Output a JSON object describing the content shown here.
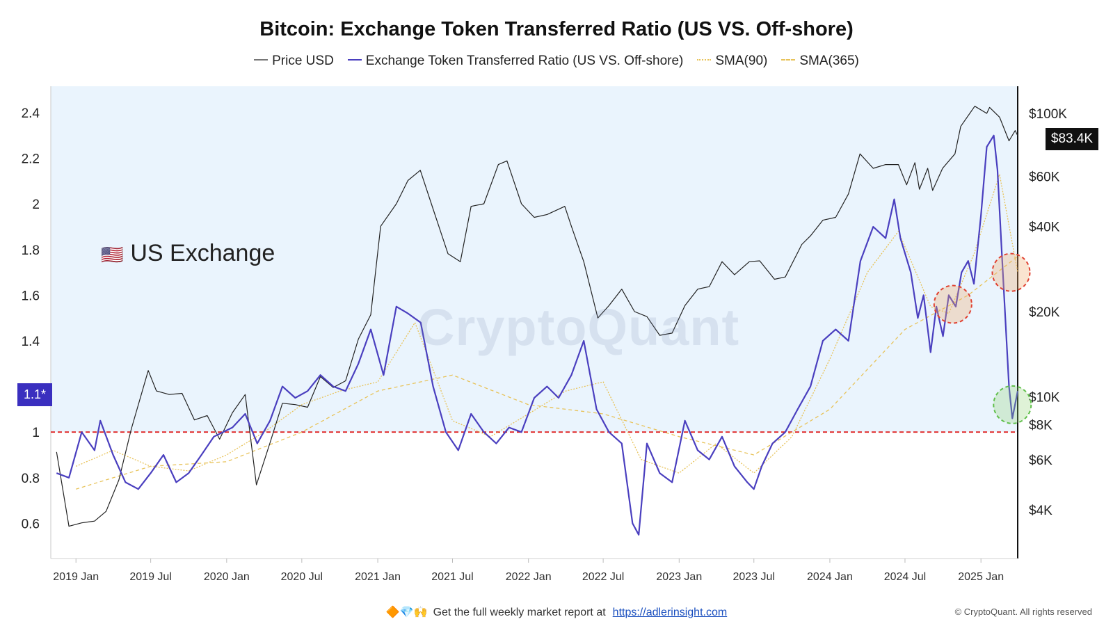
{
  "title": "Bitcoin: Exchange Token Transferred Ratio (US VS. Off-shore)",
  "legend": [
    {
      "label": "Price USD",
      "color": "#777777",
      "style": "solid"
    },
    {
      "label": "Exchange Token Transferred Ratio (US VS. Off-shore)",
      "color": "#4a3fbf",
      "style": "solid"
    },
    {
      "label": "SMA(90)",
      "color": "#e8c35a",
      "style": "dotted"
    },
    {
      "label": "SMA(365)",
      "color": "#e8c35a",
      "style": "dashed"
    }
  ],
  "annotation_label": "US Exchange",
  "annotation_icon": "us-flag-icon",
  "watermark": "CryptoQuant",
  "ratio_badge": "1.1*",
  "price_badge": "$83.4K",
  "footer": {
    "icons": "🔶💎🙌",
    "text": "Get the full weekly market report at",
    "link": "https://adlerinsight.com"
  },
  "copyright": "© CryptoQuant. All rights reserved",
  "colors": {
    "highlight_bg": "#eaf4fd",
    "ratio_line": "#4a3fbf",
    "price_line": "#222222",
    "sma": "#e8c35a",
    "threshold": "#e02020",
    "red_circle": "#e04030",
    "green_circle": "#5fbf4a"
  },
  "chart_data": {
    "type": "line",
    "x_range": [
      "2018-11-01",
      "2025-03-31"
    ],
    "x_ticks": [
      "2019 Jan",
      "2019 Jul",
      "2020 Jan",
      "2020 Jul",
      "2021 Jan",
      "2021 Jul",
      "2022 Jan",
      "2022 Jul",
      "2023 Jan",
      "2023 Jul",
      "2024 Jan",
      "2024 Jul",
      "2025 Jan"
    ],
    "y_left": {
      "ticks": [
        0.6,
        0.8,
        1,
        1.2,
        1.4,
        1.6,
        1.8,
        2,
        2.2,
        2.4
      ],
      "tick_labels": [
        "0.6",
        "0.8",
        "1",
        "1.2",
        "1.4",
        "1.6",
        "1.8",
        "2",
        "2.2",
        "2.4"
      ],
      "range": [
        0.45,
        2.5
      ]
    },
    "y_right": {
      "scale": "log",
      "ticks": [
        4000,
        6000,
        8000,
        10000,
        20000,
        40000,
        60000,
        100000
      ],
      "tick_labels": [
        "$4K",
        "$6K",
        "$8K",
        "$10K",
        "$20K",
        "$40K",
        "$60K",
        "$100K"
      ],
      "range": [
        3000,
        120000
      ]
    },
    "threshold": 1.0,
    "shaded_above": 1.0,
    "series": [
      {
        "name": "Price USD",
        "axis": "right",
        "points": [
          [
            "2018-11-15",
            6400
          ],
          [
            "2018-12-15",
            3500
          ],
          [
            "2019-01-15",
            3600
          ],
          [
            "2019-02-15",
            3650
          ],
          [
            "2019-03-15",
            3950
          ],
          [
            "2019-04-15",
            5100
          ],
          [
            "2019-05-15",
            7700
          ],
          [
            "2019-06-25",
            12400
          ],
          [
            "2019-07-15",
            10500
          ],
          [
            "2019-08-15",
            10200
          ],
          [
            "2019-09-15",
            10300
          ],
          [
            "2019-10-15",
            8300
          ],
          [
            "2019-11-15",
            8600
          ],
          [
            "2019-12-15",
            7100
          ],
          [
            "2020-01-15",
            8800
          ],
          [
            "2020-02-15",
            10200
          ],
          [
            "2020-03-13",
            4900
          ],
          [
            "2020-04-15",
            6900
          ],
          [
            "2020-05-15",
            9500
          ],
          [
            "2020-06-15",
            9400
          ],
          [
            "2020-07-15",
            9200
          ],
          [
            "2020-08-15",
            11800
          ],
          [
            "2020-09-15",
            10800
          ],
          [
            "2020-10-15",
            11400
          ],
          [
            "2020-11-15",
            16000
          ],
          [
            "2020-12-15",
            19500
          ],
          [
            "2021-01-08",
            40000
          ],
          [
            "2021-02-15",
            48000
          ],
          [
            "2021-03-15",
            58000
          ],
          [
            "2021-04-14",
            63000
          ],
          [
            "2021-05-15",
            46000
          ],
          [
            "2021-06-20",
            32000
          ],
          [
            "2021-07-20",
            30000
          ],
          [
            "2021-08-15",
            47000
          ],
          [
            "2021-09-15",
            48000
          ],
          [
            "2021-10-20",
            66000
          ],
          [
            "2021-11-10",
            68000
          ],
          [
            "2021-12-15",
            48000
          ],
          [
            "2022-01-15",
            43000
          ],
          [
            "2022-02-15",
            44000
          ],
          [
            "2022-03-30",
            47000
          ],
          [
            "2022-04-15",
            40000
          ],
          [
            "2022-05-15",
            30000
          ],
          [
            "2022-06-18",
            19000
          ],
          [
            "2022-07-15",
            21000
          ],
          [
            "2022-08-15",
            24000
          ],
          [
            "2022-09-15",
            20000
          ],
          [
            "2022-10-15",
            19200
          ],
          [
            "2022-11-15",
            16500
          ],
          [
            "2022-12-15",
            16800
          ],
          [
            "2023-01-15",
            21000
          ],
          [
            "2023-02-15",
            24000
          ],
          [
            "2023-03-15",
            24500
          ],
          [
            "2023-04-15",
            30000
          ],
          [
            "2023-05-15",
            27000
          ],
          [
            "2023-06-20",
            30000
          ],
          [
            "2023-07-15",
            30200
          ],
          [
            "2023-08-20",
            26000
          ],
          [
            "2023-09-15",
            26500
          ],
          [
            "2023-10-25",
            34500
          ],
          [
            "2023-11-15",
            37000
          ],
          [
            "2023-12-15",
            42000
          ],
          [
            "2024-01-15",
            43000
          ],
          [
            "2024-02-15",
            52000
          ],
          [
            "2024-03-14",
            72000
          ],
          [
            "2024-04-15",
            64000
          ],
          [
            "2024-05-15",
            66000
          ],
          [
            "2024-06-15",
            66000
          ],
          [
            "2024-07-05",
            56000
          ],
          [
            "2024-07-25",
            67000
          ],
          [
            "2024-08-05",
            54000
          ],
          [
            "2024-08-25",
            64000
          ],
          [
            "2024-09-06",
            53500
          ],
          [
            "2024-09-30",
            64000
          ],
          [
            "2024-10-30",
            72000
          ],
          [
            "2024-11-13",
            90000
          ],
          [
            "2024-12-17",
            106000
          ],
          [
            "2025-01-15",
            100000
          ],
          [
            "2025-01-22",
            105000
          ],
          [
            "2025-02-15",
            97000
          ],
          [
            "2025-03-10",
            80000
          ],
          [
            "2025-03-25",
            87000
          ],
          [
            "2025-03-31",
            83400
          ]
        ]
      },
      {
        "name": "Exchange Token Transferred Ratio (US VS. Off-shore)",
        "axis": "left",
        "points": [
          [
            "2018-11-15",
            0.82
          ],
          [
            "2018-12-15",
            0.8
          ],
          [
            "2019-01-15",
            1.0
          ],
          [
            "2019-02-15",
            0.92
          ],
          [
            "2019-03-01",
            1.05
          ],
          [
            "2019-04-01",
            0.9
          ],
          [
            "2019-05-01",
            0.78
          ],
          [
            "2019-06-01",
            0.75
          ],
          [
            "2019-07-01",
            0.82
          ],
          [
            "2019-08-01",
            0.9
          ],
          [
            "2019-09-01",
            0.78
          ],
          [
            "2019-10-01",
            0.82
          ],
          [
            "2019-11-01",
            0.9
          ],
          [
            "2019-12-01",
            0.98
          ],
          [
            "2020-01-15",
            1.02
          ],
          [
            "2020-02-15",
            1.08
          ],
          [
            "2020-03-15",
            0.95
          ],
          [
            "2020-04-15",
            1.05
          ],
          [
            "2020-05-15",
            1.2
          ],
          [
            "2020-06-15",
            1.15
          ],
          [
            "2020-07-15",
            1.18
          ],
          [
            "2020-08-15",
            1.25
          ],
          [
            "2020-09-15",
            1.2
          ],
          [
            "2020-10-15",
            1.18
          ],
          [
            "2020-11-15",
            1.3
          ],
          [
            "2020-12-15",
            1.45
          ],
          [
            "2021-01-15",
            1.25
          ],
          [
            "2021-02-15",
            1.55
          ],
          [
            "2021-03-15",
            1.52
          ],
          [
            "2021-04-15",
            1.48
          ],
          [
            "2021-05-15",
            1.2
          ],
          [
            "2021-06-15",
            1.0
          ],
          [
            "2021-07-15",
            0.92
          ],
          [
            "2021-08-15",
            1.08
          ],
          [
            "2021-09-15",
            1.0
          ],
          [
            "2021-10-15",
            0.95
          ],
          [
            "2021-11-15",
            1.02
          ],
          [
            "2021-12-15",
            1.0
          ],
          [
            "2022-01-15",
            1.15
          ],
          [
            "2022-02-15",
            1.2
          ],
          [
            "2022-03-15",
            1.15
          ],
          [
            "2022-04-15",
            1.25
          ],
          [
            "2022-05-15",
            1.4
          ],
          [
            "2022-06-15",
            1.1
          ],
          [
            "2022-07-15",
            1.0
          ],
          [
            "2022-08-15",
            0.95
          ],
          [
            "2022-09-10",
            0.6
          ],
          [
            "2022-09-25",
            0.55
          ],
          [
            "2022-10-15",
            0.95
          ],
          [
            "2022-11-15",
            0.82
          ],
          [
            "2022-12-15",
            0.78
          ],
          [
            "2023-01-15",
            1.05
          ],
          [
            "2023-02-15",
            0.92
          ],
          [
            "2023-03-15",
            0.88
          ],
          [
            "2023-04-15",
            0.98
          ],
          [
            "2023-05-15",
            0.85
          ],
          [
            "2023-06-15",
            0.78
          ],
          [
            "2023-07-01",
            0.75
          ],
          [
            "2023-07-20",
            0.85
          ],
          [
            "2023-08-15",
            0.95
          ],
          [
            "2023-09-15",
            1.0
          ],
          [
            "2023-10-15",
            1.1
          ],
          [
            "2023-11-15",
            1.2
          ],
          [
            "2023-12-15",
            1.4
          ],
          [
            "2024-01-15",
            1.45
          ],
          [
            "2024-02-15",
            1.4
          ],
          [
            "2024-03-15",
            1.75
          ],
          [
            "2024-04-15",
            1.9
          ],
          [
            "2024-05-15",
            1.85
          ],
          [
            "2024-06-05",
            2.02
          ],
          [
            "2024-06-20",
            1.85
          ],
          [
            "2024-07-15",
            1.7
          ],
          [
            "2024-08-01",
            1.5
          ],
          [
            "2024-08-15",
            1.6
          ],
          [
            "2024-09-01",
            1.35
          ],
          [
            "2024-09-15",
            1.55
          ],
          [
            "2024-10-01",
            1.42
          ],
          [
            "2024-10-15",
            1.6
          ],
          [
            "2024-11-01",
            1.55
          ],
          [
            "2024-11-15",
            1.7
          ],
          [
            "2024-12-01",
            1.75
          ],
          [
            "2024-12-15",
            1.65
          ],
          [
            "2025-01-01",
            1.95
          ],
          [
            "2025-01-15",
            2.25
          ],
          [
            "2025-02-01",
            2.3
          ],
          [
            "2025-02-10",
            2.15
          ],
          [
            "2025-02-20",
            1.8
          ],
          [
            "2025-03-01",
            1.5
          ],
          [
            "2025-03-10",
            1.2
          ],
          [
            "2025-03-18",
            1.06
          ],
          [
            "2025-03-31",
            1.18
          ]
        ]
      },
      {
        "name": "SMA(90)",
        "axis": "left",
        "points": [
          [
            "2019-01-01",
            0.85
          ],
          [
            "2019-04-01",
            0.92
          ],
          [
            "2019-07-01",
            0.85
          ],
          [
            "2019-10-01",
            0.83
          ],
          [
            "2020-01-01",
            0.9
          ],
          [
            "2020-04-01",
            1.0
          ],
          [
            "2020-07-01",
            1.12
          ],
          [
            "2020-10-01",
            1.18
          ],
          [
            "2021-01-01",
            1.22
          ],
          [
            "2021-04-01",
            1.48
          ],
          [
            "2021-07-01",
            1.05
          ],
          [
            "2021-10-01",
            0.98
          ],
          [
            "2022-01-01",
            1.08
          ],
          [
            "2022-04-01",
            1.18
          ],
          [
            "2022-07-01",
            1.22
          ],
          [
            "2022-10-01",
            0.88
          ],
          [
            "2023-01-01",
            0.82
          ],
          [
            "2023-04-01",
            0.95
          ],
          [
            "2023-07-01",
            0.82
          ],
          [
            "2023-10-01",
            0.98
          ],
          [
            "2024-01-01",
            1.32
          ],
          [
            "2024-04-01",
            1.7
          ],
          [
            "2024-06-15",
            1.88
          ],
          [
            "2024-09-01",
            1.55
          ],
          [
            "2024-10-15",
            1.52
          ],
          [
            "2024-12-15",
            1.78
          ],
          [
            "2025-02-15",
            2.13
          ],
          [
            "2025-03-31",
            1.7
          ]
        ]
      },
      {
        "name": "SMA(365)",
        "axis": "left",
        "points": [
          [
            "2019-01-01",
            0.75
          ],
          [
            "2019-07-01",
            0.85
          ],
          [
            "2020-01-01",
            0.87
          ],
          [
            "2020-07-01",
            1.0
          ],
          [
            "2021-01-01",
            1.18
          ],
          [
            "2021-07-01",
            1.25
          ],
          [
            "2022-01-01",
            1.12
          ],
          [
            "2022-07-01",
            1.08
          ],
          [
            "2023-01-01",
            0.98
          ],
          [
            "2023-07-01",
            0.9
          ],
          [
            "2024-01-01",
            1.1
          ],
          [
            "2024-07-01",
            1.45
          ],
          [
            "2024-12-01",
            1.6
          ],
          [
            "2025-03-31",
            1.77
          ]
        ]
      }
    ],
    "highlights": [
      {
        "date": "2024-10-25",
        "value": 1.56,
        "color": "red"
      },
      {
        "date": "2025-03-15",
        "value": 1.7,
        "color": "red"
      },
      {
        "date": "2025-03-18",
        "value": 1.12,
        "color": "green"
      }
    ]
  }
}
